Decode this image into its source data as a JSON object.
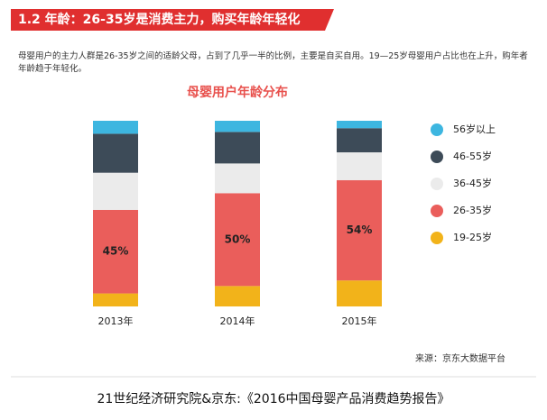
{
  "header": {
    "title": "1.2 年龄：26-35岁是消费主力，购买年龄年轻化"
  },
  "description": "母婴用户的主力人群是26-35岁之间的适龄父母，占到了几乎一半的比例，主要是自买自用。19—25岁母婴用户占比也在上升，购年者年龄趋于年轻化。",
  "chart_data": {
    "type": "stacked_bar",
    "title": "母婴用户年龄分布",
    "categories": [
      "2013年",
      "2014年",
      "2015年"
    ],
    "series": [
      {
        "name": "56岁以上",
        "color": "#3db6e0",
        "values": [
          7,
          6,
          4
        ]
      },
      {
        "name": "46-55岁",
        "color": "#3d4b58",
        "values": [
          21,
          17,
          13
        ]
      },
      {
        "name": "36-45岁",
        "color": "#ebebeb",
        "values": [
          20,
          16,
          15
        ]
      },
      {
        "name": "26-35岁",
        "color": "#ea5e5b",
        "values": [
          45,
          50,
          54
        ],
        "value_labels": [
          "45%",
          "50%",
          "54%"
        ]
      },
      {
        "name": "19-25岁",
        "color": "#f2b31a",
        "values": [
          7,
          11,
          14
        ]
      }
    ],
    "ylim": [
      0,
      100
    ],
    "legend": "right"
  },
  "source": "来源：京东大数据平台",
  "caption": "21世纪经济研究院&京东:《2016中国母婴产品消费趋势报告》"
}
